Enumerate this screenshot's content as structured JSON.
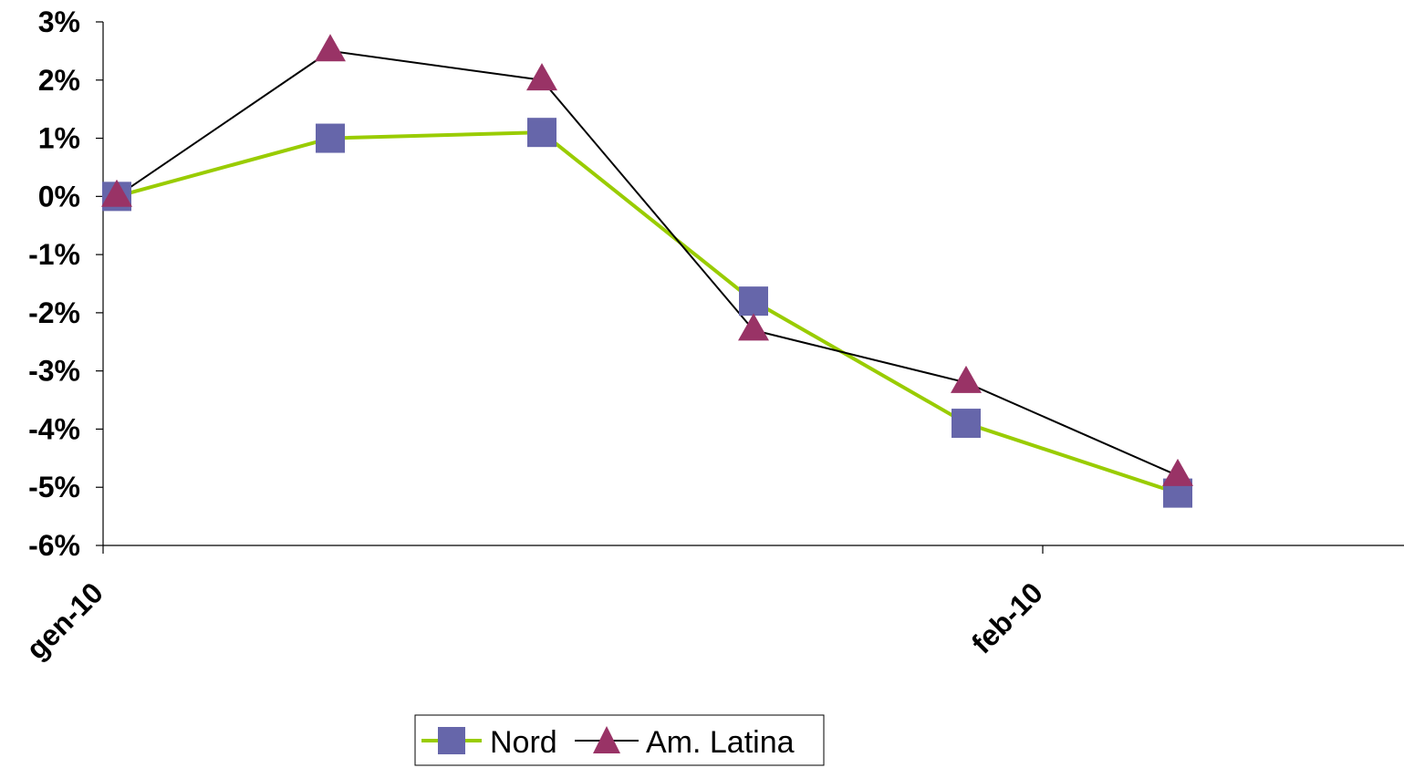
{
  "chart_data": {
    "type": "line",
    "title": "",
    "xlabel": "",
    "ylabel": "",
    "x_tick_labels": [
      "gen-10",
      "feb-10"
    ],
    "y_tick_labels": [
      "3%",
      "2%",
      "1%",
      "0%",
      "-1%",
      "-2%",
      "-3%",
      "-4%",
      "-5%",
      "-6%"
    ],
    "ylim": [
      -6,
      3
    ],
    "y_unit": "%",
    "grid": false,
    "legend_position": "bottom",
    "series": [
      {
        "name": "Nord",
        "marker": "square",
        "line_color": "#99CC00",
        "marker_color": "#6666AA",
        "values": [
          0.0,
          1.0,
          1.1,
          -1.8,
          -3.9,
          -5.1
        ]
      },
      {
        "name": "Am. Latina",
        "marker": "triangle",
        "line_color": "#000000",
        "marker_color": "#993366",
        "values": [
          0.0,
          2.5,
          2.0,
          -2.3,
          -3.2,
          -4.8
        ]
      }
    ]
  }
}
